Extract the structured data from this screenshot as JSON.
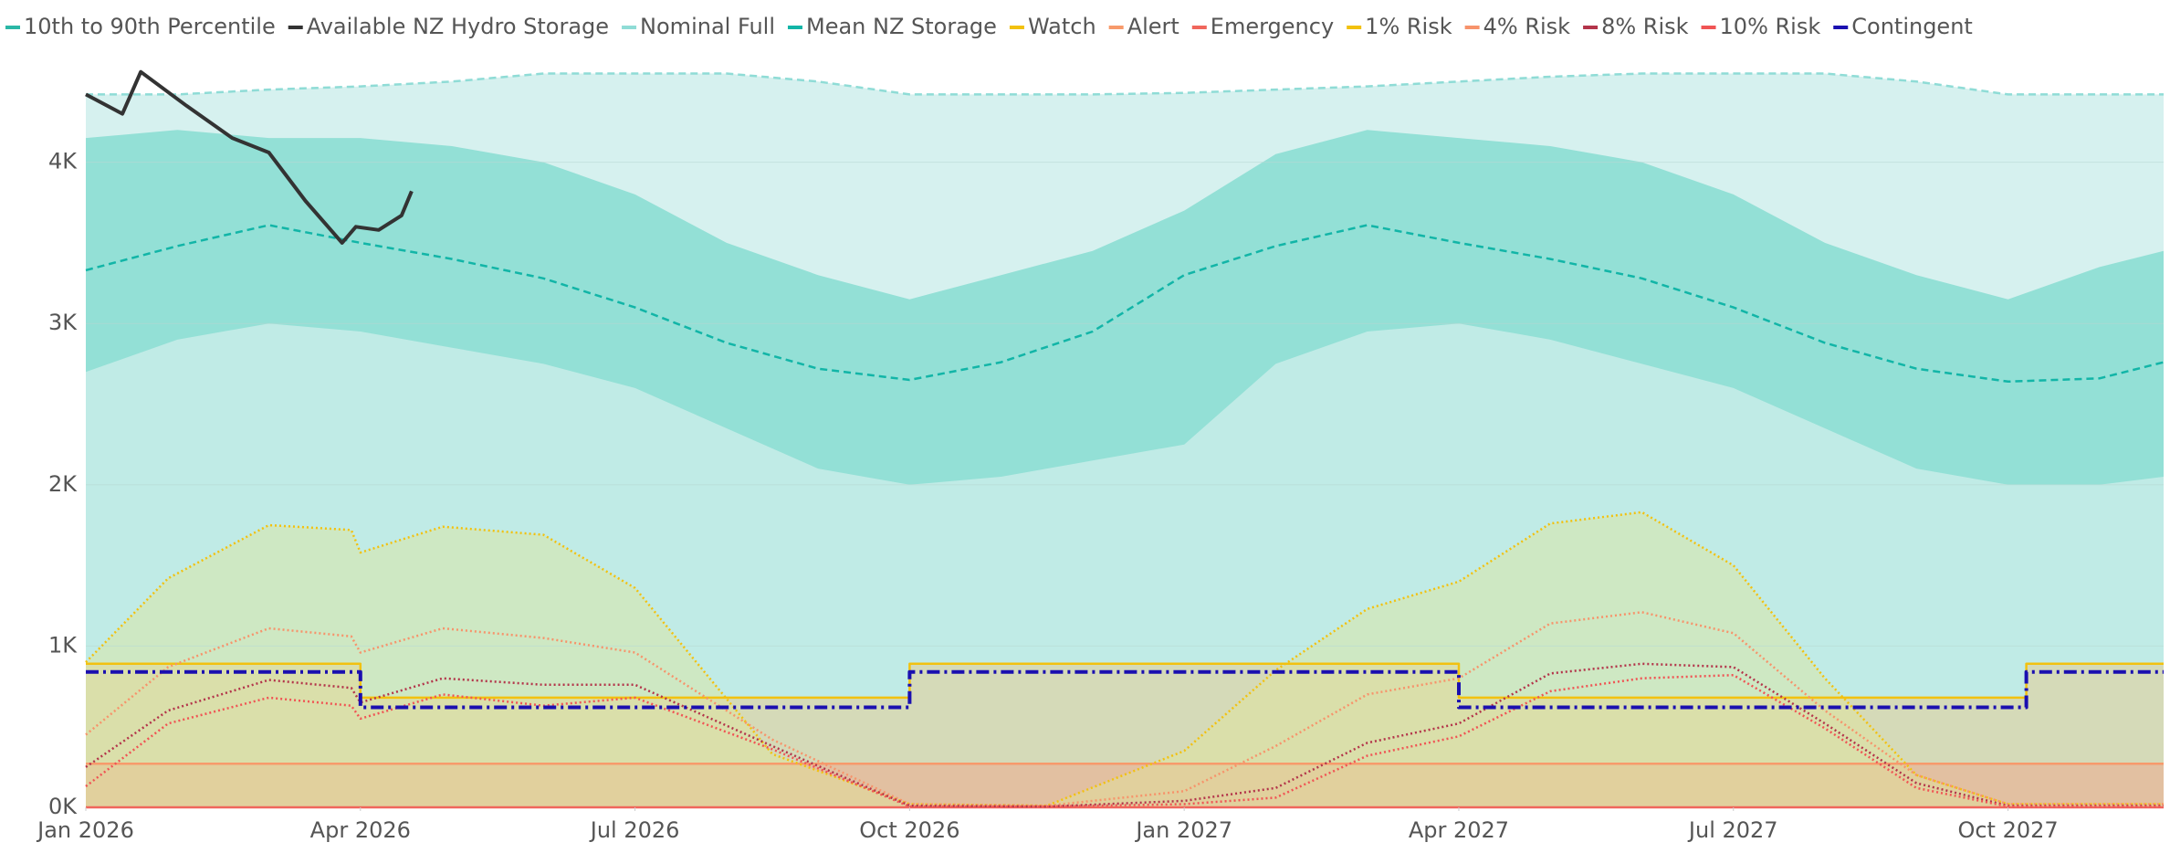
{
  "chart_data": {
    "type": "line",
    "xlim": [
      0,
      22.7
    ],
    "xticks": [
      {
        "value": 0,
        "label": "Jan 2026"
      },
      {
        "value": 3,
        "label": "Apr 2026"
      },
      {
        "value": 6,
        "label": "Jul 2026"
      },
      {
        "value": 9,
        "label": "Oct 2026"
      },
      {
        "value": 12,
        "label": "Jan 2027"
      },
      {
        "value": 15,
        "label": "Apr 2027"
      },
      {
        "value": 18,
        "label": "Jul 2027"
      },
      {
        "value": 21,
        "label": "Oct 2027"
      }
    ],
    "ylim": [
      0,
      4700
    ],
    "yticks": [
      {
        "value": 0,
        "label": "0K"
      },
      {
        "value": 1000,
        "label": "1K"
      },
      {
        "value": 2000,
        "label": "2K"
      },
      {
        "value": 3000,
        "label": "3K"
      },
      {
        "value": 4000,
        "label": "4K"
      }
    ],
    "grid": true,
    "legend": "top-left",
    "series": [
      {
        "name": "10th to 90th Percentile",
        "kind": "band",
        "color": "#2bb7a6",
        "x": [
          0,
          1,
          2,
          3,
          4,
          5,
          6,
          7,
          8,
          9,
          10,
          11,
          12,
          13,
          14,
          15,
          16,
          17,
          18,
          19,
          20,
          21,
          22,
          22.7
        ],
        "high": [
          4150,
          4200,
          4150,
          4150,
          4100,
          4000,
          3800,
          3500,
          3300,
          3150,
          3300,
          3450,
          3700,
          4050,
          4200,
          4150,
          4100,
          4000,
          3800,
          3500,
          3300,
          3150,
          3350,
          3450
        ],
        "low": [
          2700,
          2900,
          3000,
          2950,
          2850,
          2750,
          2600,
          2350,
          2100,
          2000,
          2050,
          2150,
          2250,
          2750,
          2950,
          3000,
          2900,
          2750,
          2600,
          2350,
          2100,
          2000,
          2000,
          2050
        ]
      },
      {
        "name": "Available NZ Hydro Storage",
        "color": "#333333",
        "line_style": "solid",
        "x": [
          0,
          0.4,
          0.6,
          1.1,
          1.6,
          2,
          2.4,
          2.8,
          2.95,
          3.2,
          3.45,
          3.56
        ],
        "values": [
          4420,
          4300,
          4560,
          4350,
          4150,
          4060,
          3760,
          3500,
          3600,
          3580,
          3670,
          3820
        ]
      },
      {
        "name": "Nominal Full",
        "color": "#8fdcd6",
        "line_style": "dashed",
        "area": true,
        "x": [
          0,
          1,
          2,
          3,
          4,
          5,
          6,
          7,
          8,
          9,
          10,
          11,
          12,
          13,
          14,
          15,
          16,
          17,
          18,
          19,
          20,
          21,
          22,
          22.7
        ],
        "values": [
          4420,
          4420,
          4450,
          4470,
          4500,
          4550,
          4550,
          4550,
          4500,
          4420,
          4420,
          4420,
          4430,
          4450,
          4470,
          4500,
          4530,
          4550,
          4550,
          4550,
          4500,
          4420,
          4420,
          4420
        ]
      },
      {
        "name": "Mean NZ Storage",
        "color": "#12b5a7",
        "line_style": "dashed",
        "x": [
          0,
          1,
          2,
          3,
          4,
          5,
          6,
          7,
          8,
          9,
          10,
          11,
          12,
          13,
          14,
          15,
          16,
          17,
          18,
          19,
          20,
          21,
          22,
          22.7
        ],
        "values": [
          3330,
          3480,
          3610,
          3500,
          3400,
          3280,
          3100,
          2880,
          2720,
          2650,
          2760,
          2950,
          3300,
          3480,
          3610,
          3500,
          3400,
          3280,
          3100,
          2880,
          2720,
          2640,
          2660,
          2760
        ]
      },
      {
        "name": "Watch",
        "color": "#f2c10f",
        "line_style": "solid",
        "area": true,
        "x": [
          0,
          3,
          3,
          9,
          9,
          15,
          15,
          21.2,
          21.2,
          22.7
        ],
        "values": [
          890,
          890,
          680,
          680,
          890,
          890,
          680,
          680,
          890,
          890
        ]
      },
      {
        "name": "Alert",
        "color": "#f79a6b",
        "line_style": "solid",
        "area": true,
        "x": [
          0,
          22.7
        ],
        "values": [
          270,
          270
        ]
      },
      {
        "name": "Emergency",
        "color": "#f0665c",
        "line_style": "solid",
        "x": [
          0,
          22.7
        ],
        "values": [
          0,
          0
        ]
      },
      {
        "name": "1% Risk",
        "color": "#f2c10f",
        "line_style": "dotted",
        "area": true,
        "x": [
          0,
          0.9,
          2,
          2.9,
          3,
          3.9,
          5,
          6,
          7.5,
          9,
          10.5,
          12,
          13,
          14,
          15,
          16,
          17,
          18,
          19,
          20,
          21,
          22.7
        ],
        "values": [
          900,
          1420,
          1750,
          1720,
          1580,
          1740,
          1690,
          1360,
          330,
          20,
          10,
          350,
          850,
          1230,
          1400,
          1760,
          1830,
          1500,
          800,
          200,
          20,
          20
        ]
      },
      {
        "name": "4% Risk",
        "color": "#f7936b",
        "line_style": "dotted",
        "x": [
          0,
          0.9,
          2,
          2.9,
          3,
          3.9,
          5,
          6,
          7.5,
          9,
          10.5,
          12,
          13,
          14,
          15,
          16,
          17,
          18,
          19,
          20,
          21,
          22.7
        ],
        "values": [
          450,
          870,
          1110,
          1060,
          960,
          1110,
          1050,
          960,
          420,
          20,
          10,
          100,
          380,
          700,
          800,
          1140,
          1210,
          1080,
          600,
          200,
          20,
          20
        ]
      },
      {
        "name": "8% Risk",
        "color": "#b3344a",
        "line_style": "dotted",
        "x": [
          0,
          0.9,
          2,
          2.9,
          3,
          3.9,
          5,
          6,
          7.5,
          9,
          10.5,
          12,
          13,
          14,
          15,
          16,
          17,
          18,
          19,
          20,
          21,
          22.7
        ],
        "values": [
          250,
          600,
          790,
          740,
          650,
          800,
          760,
          760,
          380,
          10,
          5,
          40,
          120,
          400,
          520,
          830,
          890,
          870,
          520,
          150,
          10,
          10
        ]
      },
      {
        "name": "10% Risk",
        "color": "#f05454",
        "line_style": "dotted",
        "x": [
          0,
          0.9,
          2,
          2.9,
          3,
          3.9,
          5,
          6,
          7.5,
          9,
          10.5,
          12,
          13,
          14,
          15,
          16,
          17,
          18,
          19,
          20,
          21,
          22.7
        ],
        "values": [
          130,
          520,
          680,
          630,
          550,
          700,
          630,
          680,
          360,
          5,
          5,
          20,
          60,
          320,
          440,
          720,
          800,
          820,
          490,
          120,
          5,
          5
        ]
      },
      {
        "name": "Contingent",
        "color": "#1a0fb0",
        "line_style": "dashdot",
        "x": [
          0,
          3,
          3,
          9,
          9,
          15,
          15,
          21.2,
          21.2,
          22.7
        ],
        "values": [
          840,
          840,
          620,
          620,
          840,
          840,
          620,
          620,
          840,
          840
        ]
      }
    ]
  }
}
